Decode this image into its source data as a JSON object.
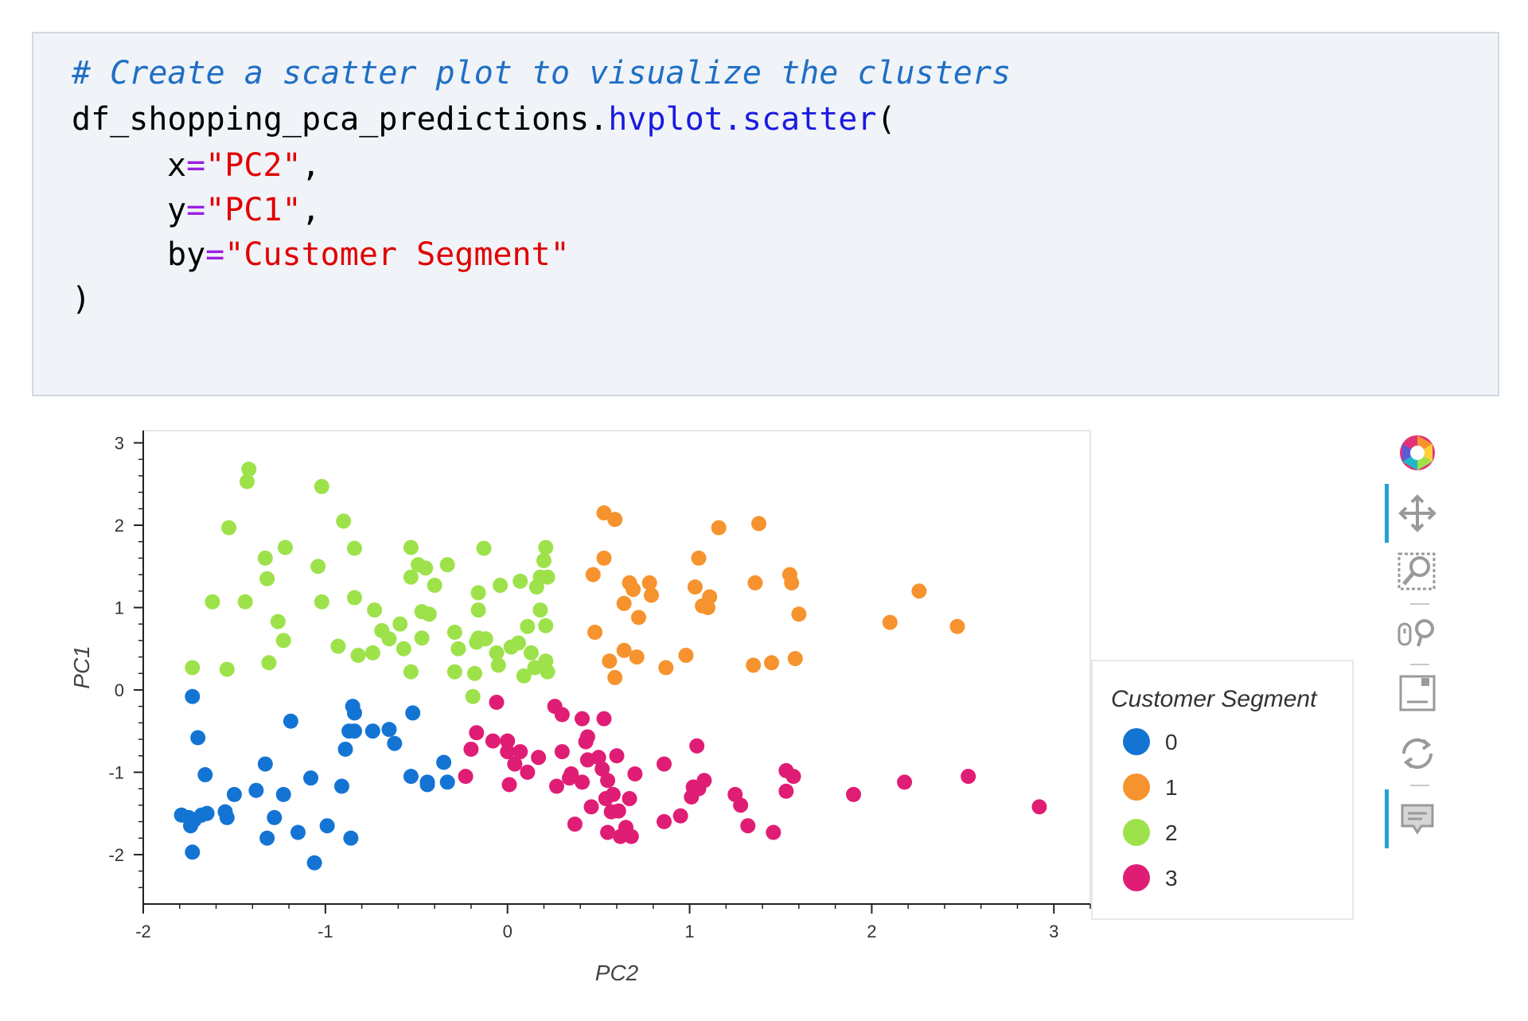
{
  "code": {
    "comment": "# Create a scatter plot to visualize the clusters",
    "object": "df_shopping_pca_predictions.",
    "method": "hvplot.scatter",
    "open_paren": "(",
    "x_kw": "x",
    "x_val": "\"PC2\"",
    "y_kw": "y",
    "y_val": "\"PC1\"",
    "by_kw": "by",
    "by_val": "\"Customer Segment\"",
    "equals": "=",
    "comma": ",",
    "close_paren": ")"
  },
  "toolbar": {
    "icons": [
      "bokeh-logo-icon",
      "pan-icon",
      "box-zoom-icon",
      "wheel-zoom-icon",
      "save-icon",
      "reset-icon",
      "hover-icon"
    ]
  },
  "chart_data": {
    "type": "scatter",
    "xlabel": "PC2",
    "ylabel": "PC1",
    "xlim": [
      -2,
      3.2
    ],
    "ylim": [
      -2.6,
      3.15
    ],
    "x_ticks": [
      -2,
      -1,
      0,
      1,
      2,
      3
    ],
    "y_ticks": [
      3,
      2,
      1,
      0,
      -1,
      -2
    ],
    "x_tick_labels": [
      "-2",
      "-1",
      "0",
      "1",
      "2",
      "3"
    ],
    "y_tick_labels": [
      "3",
      "2",
      "1",
      "0",
      "-1",
      "-2"
    ],
    "legend_title": "Customer Segment",
    "legend_position": "right",
    "grid": false,
    "series": [
      {
        "name": "0",
        "color": "#1474d4",
        "points": [
          [
            -1.73,
            -0.08
          ],
          [
            -1.7,
            -0.58
          ],
          [
            -1.66,
            -1.03
          ],
          [
            -1.79,
            -1.52
          ],
          [
            -1.75,
            -1.55
          ],
          [
            -1.74,
            -1.65
          ],
          [
            -1.72,
            -1.58
          ],
          [
            -1.68,
            -1.52
          ],
          [
            -1.65,
            -1.5
          ],
          [
            -1.55,
            -1.48
          ],
          [
            -1.54,
            -1.55
          ],
          [
            -1.5,
            -1.27
          ],
          [
            -1.38,
            -1.22
          ],
          [
            -1.33,
            -0.9
          ],
          [
            -1.32,
            -1.8
          ],
          [
            -1.28,
            -1.55
          ],
          [
            -1.23,
            -1.27
          ],
          [
            -1.19,
            -0.38
          ],
          [
            -1.15,
            -1.73
          ],
          [
            -1.08,
            -1.07
          ],
          [
            -1.06,
            -2.1
          ],
          [
            -0.99,
            -1.65
          ],
          [
            -0.91,
            -1.17
          ],
          [
            -0.89,
            -0.72
          ],
          [
            -0.87,
            -0.5
          ],
          [
            -0.85,
            -0.2
          ],
          [
            -0.84,
            -0.28
          ],
          [
            -0.84,
            -0.5
          ],
          [
            -0.74,
            -0.5
          ],
          [
            -0.65,
            -0.48
          ],
          [
            -0.62,
            -0.65
          ],
          [
            -0.53,
            -1.05
          ],
          [
            -0.52,
            -0.28
          ],
          [
            -0.44,
            -1.12
          ],
          [
            -0.44,
            -1.15
          ],
          [
            -0.35,
            -0.88
          ],
          [
            -0.33,
            -1.12
          ],
          [
            -1.73,
            -1.97
          ],
          [
            -0.86,
            -1.8
          ]
        ]
      },
      {
        "name": "1",
        "color": "#f6932e",
        "points": [
          [
            0.47,
            1.4
          ],
          [
            0.48,
            0.7
          ],
          [
            0.53,
            2.15
          ],
          [
            0.53,
            1.6
          ],
          [
            0.56,
            0.35
          ],
          [
            0.59,
            0.15
          ],
          [
            0.59,
            2.07
          ],
          [
            0.64,
            1.05
          ],
          [
            0.64,
            0.48
          ],
          [
            0.67,
            1.3
          ],
          [
            0.69,
            1.22
          ],
          [
            0.71,
            0.4
          ],
          [
            0.72,
            0.88
          ],
          [
            0.78,
            1.3
          ],
          [
            0.79,
            1.15
          ],
          [
            0.87,
            0.27
          ],
          [
            0.98,
            0.42
          ],
          [
            1.03,
            1.25
          ],
          [
            1.05,
            1.6
          ],
          [
            1.07,
            1.02
          ],
          [
            1.1,
            1.0
          ],
          [
            1.11,
            1.13
          ],
          [
            1.16,
            1.97
          ],
          [
            1.35,
            0.3
          ],
          [
            1.36,
            1.3
          ],
          [
            1.38,
            2.02
          ],
          [
            1.45,
            0.33
          ],
          [
            1.55,
            1.4
          ],
          [
            1.56,
            1.3
          ],
          [
            1.58,
            0.38
          ],
          [
            1.6,
            0.92
          ],
          [
            2.1,
            0.82
          ],
          [
            2.26,
            1.2
          ],
          [
            2.47,
            0.77
          ]
        ]
      },
      {
        "name": "2",
        "color": "#9de24a",
        "points": [
          [
            -1.73,
            0.27
          ],
          [
            -1.62,
            1.07
          ],
          [
            -1.54,
            0.25
          ],
          [
            -1.53,
            1.97
          ],
          [
            -1.44,
            1.07
          ],
          [
            -1.43,
            2.53
          ],
          [
            -1.42,
            2.68
          ],
          [
            -1.33,
            1.6
          ],
          [
            -1.32,
            1.35
          ],
          [
            -1.31,
            0.33
          ],
          [
            -1.26,
            0.83
          ],
          [
            -1.23,
            0.6
          ],
          [
            -1.22,
            1.73
          ],
          [
            -1.04,
            1.5
          ],
          [
            -1.02,
            2.47
          ],
          [
            -1.02,
            1.07
          ],
          [
            -0.93,
            0.53
          ],
          [
            -0.9,
            2.05
          ],
          [
            -0.84,
            1.72
          ],
          [
            -0.84,
            1.12
          ],
          [
            -0.82,
            0.42
          ],
          [
            -0.74,
            0.45
          ],
          [
            -0.73,
            0.97
          ],
          [
            -0.69,
            0.72
          ],
          [
            -0.65,
            0.62
          ],
          [
            -0.59,
            0.8
          ],
          [
            -0.57,
            0.5
          ],
          [
            -0.53,
            0.22
          ],
          [
            -0.53,
            1.37
          ],
          [
            -0.53,
            1.73
          ],
          [
            -0.49,
            1.52
          ],
          [
            -0.47,
            0.63
          ],
          [
            -0.47,
            0.95
          ],
          [
            -0.45,
            1.48
          ],
          [
            -0.43,
            0.92
          ],
          [
            -0.4,
            1.27
          ],
          [
            -0.33,
            1.52
          ],
          [
            -0.29,
            0.7
          ],
          [
            -0.29,
            0.22
          ],
          [
            -0.27,
            0.5
          ],
          [
            -0.19,
            -0.08
          ],
          [
            -0.18,
            0.2
          ],
          [
            -0.16,
            1.18
          ],
          [
            -0.17,
            0.58
          ],
          [
            -0.16,
            0.63
          ],
          [
            -0.16,
            0.97
          ],
          [
            -0.13,
            1.72
          ],
          [
            -0.12,
            0.62
          ],
          [
            -0.06,
            0.45
          ],
          [
            -0.05,
            0.3
          ],
          [
            -0.04,
            1.27
          ],
          [
            0.02,
            0.52
          ],
          [
            0.06,
            0.57
          ],
          [
            0.07,
            1.32
          ],
          [
            0.09,
            0.17
          ],
          [
            0.11,
            0.77
          ],
          [
            0.13,
            0.45
          ],
          [
            0.15,
            0.27
          ],
          [
            0.16,
            1.25
          ],
          [
            0.18,
            1.37
          ],
          [
            0.18,
            0.97
          ],
          [
            0.2,
            1.57
          ],
          [
            0.21,
            0.35
          ],
          [
            0.21,
            0.78
          ],
          [
            0.21,
            1.73
          ],
          [
            0.22,
            1.37
          ],
          [
            0.22,
            0.22
          ]
        ]
      },
      {
        "name": "3",
        "color": "#e01d75",
        "points": [
          [
            -0.23,
            -1.05
          ],
          [
            -0.2,
            -0.72
          ],
          [
            -0.17,
            -0.52
          ],
          [
            -0.08,
            -0.62
          ],
          [
            -0.06,
            -0.15
          ],
          [
            0.0,
            -0.62
          ],
          [
            0.0,
            -0.75
          ],
          [
            0.01,
            -1.15
          ],
          [
            0.04,
            -0.9
          ],
          [
            0.07,
            -0.75
          ],
          [
            0.11,
            -1.0
          ],
          [
            0.17,
            -0.82
          ],
          [
            0.26,
            -0.2
          ],
          [
            0.27,
            -1.17
          ],
          [
            0.3,
            -0.3
          ],
          [
            0.3,
            -0.75
          ],
          [
            0.34,
            -1.07
          ],
          [
            0.35,
            -1.02
          ],
          [
            0.37,
            -1.63
          ],
          [
            0.41,
            -0.35
          ],
          [
            0.41,
            -1.12
          ],
          [
            0.43,
            -0.63
          ],
          [
            0.44,
            -0.57
          ],
          [
            0.44,
            -0.85
          ],
          [
            0.46,
            -1.42
          ],
          [
            0.5,
            -0.82
          ],
          [
            0.52,
            -0.96
          ],
          [
            0.53,
            -0.35
          ],
          [
            0.54,
            -1.32
          ],
          [
            0.55,
            -1.1
          ],
          [
            0.55,
            -1.73
          ],
          [
            0.57,
            -1.48
          ],
          [
            0.58,
            -1.27
          ],
          [
            0.6,
            -0.8
          ],
          [
            0.61,
            -1.47
          ],
          [
            0.62,
            -1.78
          ],
          [
            0.65,
            -1.67
          ],
          [
            0.67,
            -1.32
          ],
          [
            0.68,
            -1.78
          ],
          [
            0.7,
            -1.02
          ],
          [
            0.86,
            -0.9
          ],
          [
            0.86,
            -1.6
          ],
          [
            0.95,
            -1.53
          ],
          [
            1.01,
            -1.3
          ],
          [
            1.02,
            -1.18
          ],
          [
            1.04,
            -0.68
          ],
          [
            1.05,
            -1.2
          ],
          [
            1.08,
            -1.1
          ],
          [
            1.25,
            -1.27
          ],
          [
            1.28,
            -1.4
          ],
          [
            1.32,
            -1.65
          ],
          [
            1.46,
            -1.73
          ],
          [
            1.53,
            -0.98
          ],
          [
            1.53,
            -1.23
          ],
          [
            1.57,
            -1.05
          ],
          [
            1.9,
            -1.27
          ],
          [
            2.18,
            -1.12
          ],
          [
            2.53,
            -1.05
          ],
          [
            2.92,
            -1.42
          ]
        ]
      }
    ]
  }
}
